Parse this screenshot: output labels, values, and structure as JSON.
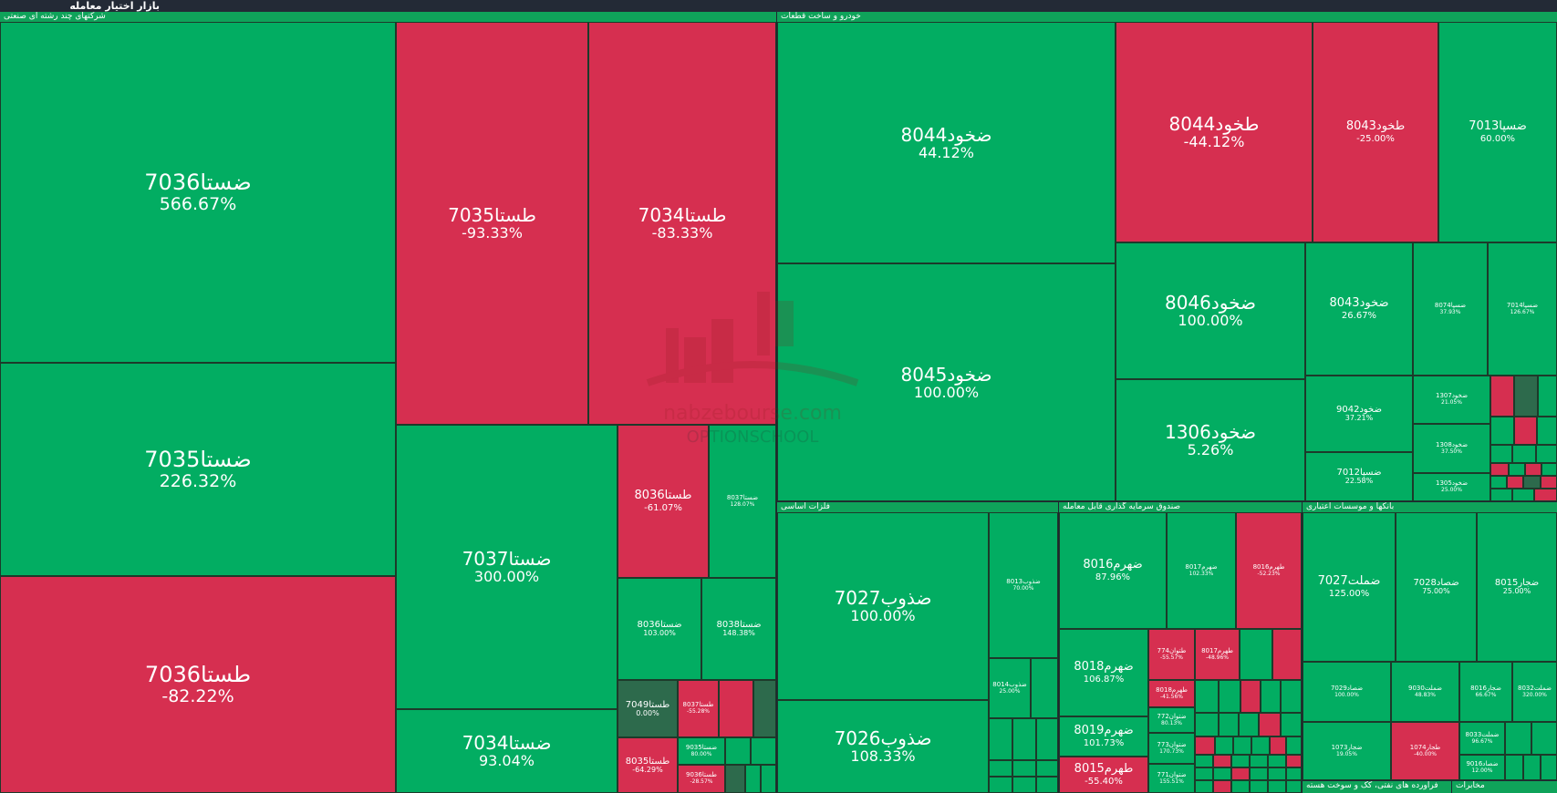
{
  "app_title": "بازار اختیار معامله",
  "colors": {
    "positive": "#02ad62",
    "negative": "#d62f50",
    "neutral": "#2d6a4c",
    "background": "#1f2631"
  },
  "watermark": {
    "text_1": "nabzebourse.com",
    "text_2": "OPTIONSCHOOL"
  },
  "sectors": [
    {
      "name": "شرکتهای چند رشته ای صنعتی"
    },
    {
      "name": "خودرو و ساخت قطعات"
    },
    {
      "name": "فلزات اساسی"
    },
    {
      "name": "صندوق سرمایه گذاری قابل معامله"
    },
    {
      "name": "بانکها و موسسات اعتباری"
    },
    {
      "name": "فراورده های نفتی، کک و سوخت هسته"
    },
    {
      "name": "مخابرات"
    }
  ],
  "tiles": [
    {
      "symbol": "ضستا7036",
      "change": "566.67%",
      "trend": "up"
    },
    {
      "symbol": "ضستا7035",
      "change": "226.32%",
      "trend": "up"
    },
    {
      "symbol": "طستا7036",
      "change": "-82.22%",
      "trend": "down"
    },
    {
      "symbol": "طستا7035",
      "change": "-93.33%",
      "trend": "down"
    },
    {
      "symbol": "طستا7034",
      "change": "-83.33%",
      "trend": "down"
    },
    {
      "symbol": "ضستا7037",
      "change": "300.00%",
      "trend": "up"
    },
    {
      "symbol": "ضستا7034",
      "change": "93.04%",
      "trend": "up"
    },
    {
      "symbol": "طستا8036",
      "change": "-61.07%",
      "trend": "down"
    },
    {
      "symbol": "ضستا8037",
      "change": "128.07%",
      "trend": "up"
    },
    {
      "symbol": "ضستا8036",
      "change": "103.00%",
      "trend": "up"
    },
    {
      "symbol": "ضستا8038",
      "change": "148.38%",
      "trend": "up"
    },
    {
      "symbol": "طستا7049",
      "change": "0.00%",
      "trend": "flat"
    },
    {
      "symbol": "طستا8037",
      "change": "-55.28%",
      "trend": "down"
    },
    {
      "symbol": "طستا8035",
      "change": "-64.29%",
      "trend": "down"
    },
    {
      "symbol": "ضستا9035",
      "change": "80.00%",
      "trend": "up"
    },
    {
      "symbol": "طستا9036",
      "change": "-28.57%",
      "trend": "down"
    },
    {
      "symbol": "ضخود8044",
      "change": "44.12%",
      "trend": "up"
    },
    {
      "symbol": "طخود8044",
      "change": "-44.12%",
      "trend": "down"
    },
    {
      "symbol": "طخود8043",
      "change": "-25.00%",
      "trend": "down"
    },
    {
      "symbol": "ضسپا7013",
      "change": "60.00%",
      "trend": "up"
    },
    {
      "symbol": "ضخود8045",
      "change": "100.00%",
      "trend": "up"
    },
    {
      "symbol": "ضخود8046",
      "change": "100.00%",
      "trend": "up"
    },
    {
      "symbol": "ضخود8043",
      "change": "26.67%",
      "trend": "up"
    },
    {
      "symbol": "ضسپا8074",
      "change": "37.93%",
      "trend": "up"
    },
    {
      "symbol": "ضسپا7014",
      "change": "126.67%",
      "trend": "up"
    },
    {
      "symbol": "ضخود1306",
      "change": "5.26%",
      "trend": "up"
    },
    {
      "symbol": "ضخود9042",
      "change": "37.21%",
      "trend": "up"
    },
    {
      "symbol": "ضخود1307",
      "change": "21.05%",
      "trend": "up"
    },
    {
      "symbol": "ضخود1308",
      "change": "37.50%",
      "trend": "up"
    },
    {
      "symbol": "ضسپا7012",
      "change": "22.58%",
      "trend": "up"
    },
    {
      "symbol": "ضخود1305",
      "change": "25.00%",
      "trend": "up"
    },
    {
      "symbol": "ضذوب7027",
      "change": "100.00%",
      "trend": "up"
    },
    {
      "symbol": "ضذوب8013",
      "change": "70.00%",
      "trend": "up"
    },
    {
      "symbol": "ضذوب8014",
      "change": "25.00%",
      "trend": "up"
    },
    {
      "symbol": "ضذوب7026",
      "change": "108.33%",
      "trend": "up"
    },
    {
      "symbol": "ضهرم8016",
      "change": "87.96%",
      "trend": "up"
    },
    {
      "symbol": "ضهرم8017",
      "change": "102.33%",
      "trend": "up"
    },
    {
      "symbol": "طهرم8016",
      "change": "-52.23%",
      "trend": "down"
    },
    {
      "symbol": "ضهرم8018",
      "change": "106.87%",
      "trend": "up"
    },
    {
      "symbol": "طتوان774",
      "change": "-55.57%",
      "trend": "down"
    },
    {
      "symbol": "طهرم8017",
      "change": "-48.96%",
      "trend": "down"
    },
    {
      "symbol": "طهرم8018",
      "change": "-41.56%",
      "trend": "down"
    },
    {
      "symbol": "ضتوان772",
      "change": "80.13%",
      "trend": "up"
    },
    {
      "symbol": "ضهرم8019",
      "change": "101.73%",
      "trend": "up"
    },
    {
      "symbol": "ضتوان773",
      "change": "170.73%",
      "trend": "up"
    },
    {
      "symbol": "طهرم8015",
      "change": "-55.40%",
      "trend": "down"
    },
    {
      "symbol": "ضتوان771",
      "change": "155.51%",
      "trend": "up"
    },
    {
      "symbol": "ضملت7027",
      "change": "125.00%",
      "trend": "up"
    },
    {
      "symbol": "ضصاد7028",
      "change": "75.00%",
      "trend": "up"
    },
    {
      "symbol": "ضجار8015",
      "change": "25.00%",
      "trend": "up"
    },
    {
      "symbol": "ضصاد7029",
      "change": "100.00%",
      "trend": "up"
    },
    {
      "symbol": "ضملت9030",
      "change": "48.83%",
      "trend": "up"
    },
    {
      "symbol": "ضجار8016",
      "change": "66.67%",
      "trend": "up"
    },
    {
      "symbol": "ضملت8032",
      "change": "320.00%",
      "trend": "up"
    },
    {
      "symbol": "ضجار1073",
      "change": "19.05%",
      "trend": "up"
    },
    {
      "symbol": "طجار1074",
      "change": "-40.00%",
      "trend": "down"
    },
    {
      "symbol": "ضملت8033",
      "change": "96.67%",
      "trend": "up"
    },
    {
      "symbol": "ضصاد9016",
      "change": "12.00%",
      "trend": "up"
    }
  ]
}
